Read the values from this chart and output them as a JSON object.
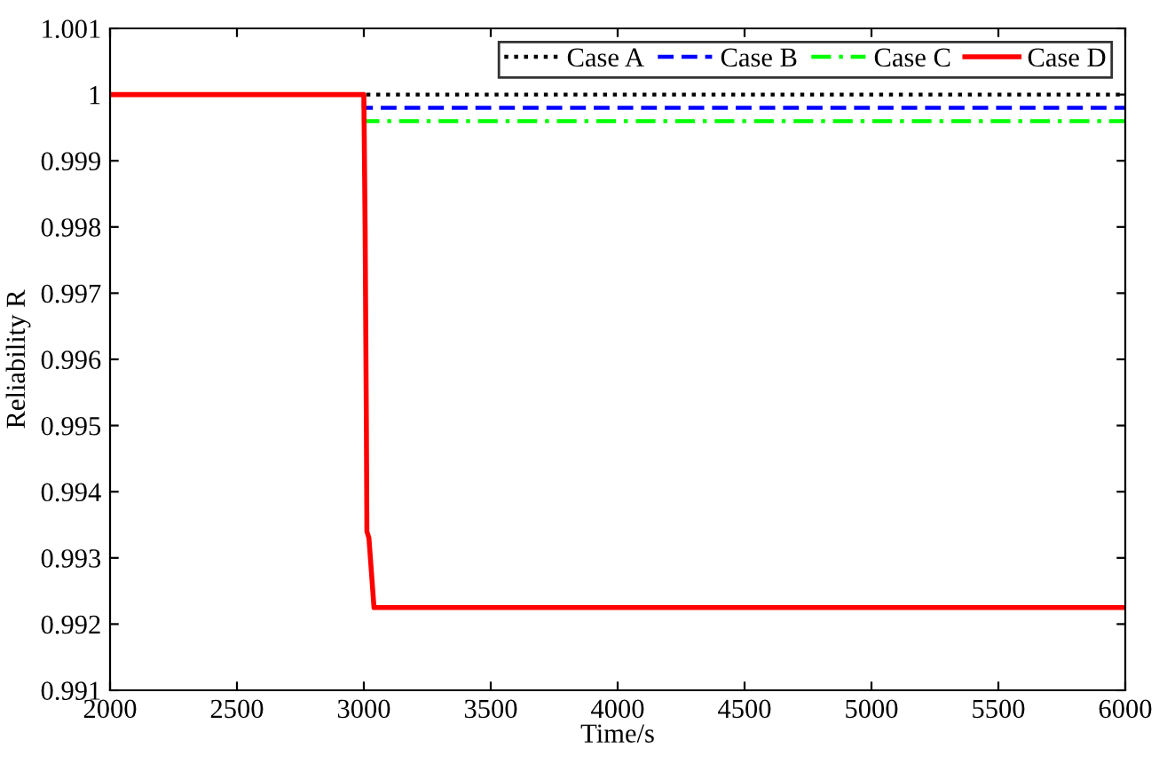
{
  "chart_data": {
    "type": "line",
    "xlabel": "Time/s",
    "ylabel": "Reliability R",
    "xlim": [
      2000,
      6000
    ],
    "ylim": [
      0.991,
      1.001
    ],
    "xticks": [
      2000,
      2500,
      3000,
      3500,
      4000,
      4500,
      5000,
      5500,
      6000
    ],
    "yticks": [
      0.991,
      0.992,
      0.993,
      0.994,
      0.995,
      0.996,
      0.997,
      0.998,
      0.999,
      1,
      1.001
    ],
    "grid": false,
    "legend": "top right",
    "series": [
      {
        "name": "Case A",
        "color": "#000000",
        "line_style": "dotted",
        "x": [
          2000,
          6000
        ],
        "values": [
          1,
          1
        ]
      },
      {
        "name": "Case B",
        "color": "#0000ff",
        "line_style": "dashed",
        "x": [
          2000,
          3000,
          3000,
          6000
        ],
        "values": [
          1,
          1,
          0.9998,
          0.9998
        ]
      },
      {
        "name": "Case C",
        "color": "#00ff00",
        "line_style": "dashdot",
        "x": [
          2000,
          3000,
          3000,
          6000
        ],
        "values": [
          1,
          1,
          0.9996,
          0.9996
        ]
      },
      {
        "name": "Case D",
        "color": "#ff0000",
        "line_style": "solid",
        "x": [
          2000,
          3000,
          3005,
          3010,
          3012,
          3020,
          3040,
          6000
        ],
        "values": [
          1,
          1,
          0.998,
          0.995,
          0.9934,
          0.9933,
          0.99225,
          0.99225
        ]
      }
    ]
  }
}
